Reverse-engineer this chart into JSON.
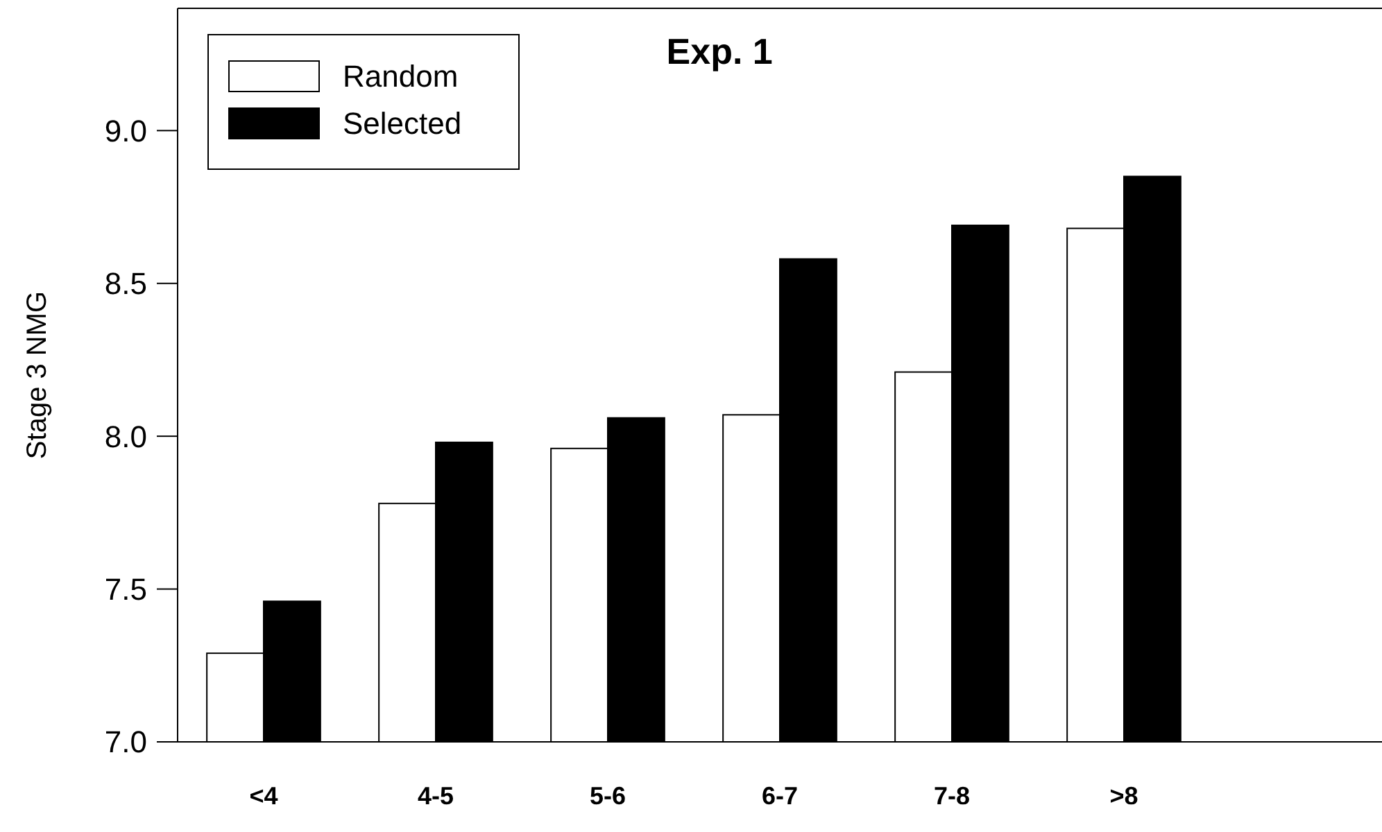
{
  "chart_data": {
    "type": "bar",
    "title": "Exp. 1",
    "ylabel": "Stage 3 NMG",
    "categories": [
      "<4",
      "4-5",
      "5-6",
      "6-7",
      "7-8",
      ">8"
    ],
    "series": [
      {
        "name": "Random",
        "color": "#ffffff",
        "values": [
          7.29,
          7.78,
          7.96,
          8.07,
          8.21,
          8.68
        ]
      },
      {
        "name": "Selected",
        "color": "#000000",
        "values": [
          7.46,
          7.98,
          8.06,
          8.58,
          8.69,
          8.85
        ]
      }
    ],
    "ylim": [
      7.0,
      9.4
    ],
    "yticks": [
      {
        "value": 7,
        "label": "7.0"
      },
      7.5,
      {
        "value": 8,
        "label": "8.0"
      },
      8.5,
      {
        "value": 9,
        "label": "9.0"
      }
    ],
    "legend": "top left",
    "grid": false
  }
}
